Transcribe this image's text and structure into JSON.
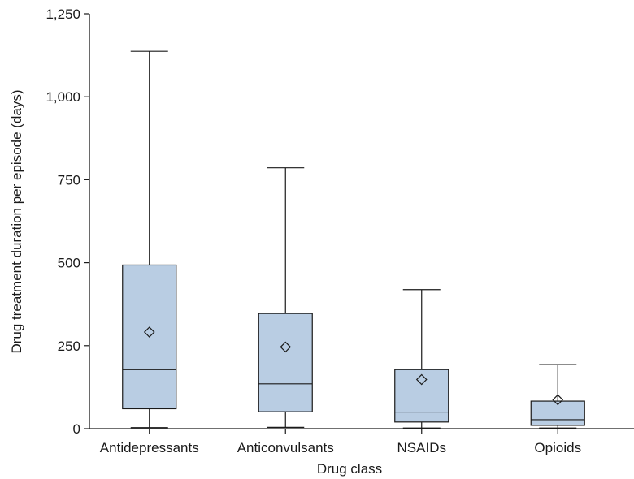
{
  "chart_data": {
    "type": "boxplot",
    "title": "",
    "xlabel": "Drug class",
    "ylabel": "Drug treatment duration per episode (days)",
    "ylim": [
      0,
      1250
    ],
    "yticks": [
      0,
      250,
      500,
      750,
      1000,
      1250
    ],
    "ytick_labels": [
      "0",
      "250",
      "500",
      "750",
      "1,000",
      "1,250"
    ],
    "grid": false,
    "box_color": "#b9cde3",
    "line_color": "#1a1a1a",
    "categories": [
      "Antidepressants",
      "Anticonvulsants",
      "NSAIDs",
      "Opioids"
    ],
    "boxes": [
      {
        "category": "Antidepressants",
        "whisker_low": 3,
        "q1": 60,
        "median": 178,
        "q3": 493,
        "whisker_high": 1137,
        "mean": 291
      },
      {
        "category": "Anticonvulsants",
        "whisker_low": 4,
        "q1": 51,
        "median": 135,
        "q3": 347,
        "whisker_high": 786,
        "mean": 246
      },
      {
        "category": "NSAIDs",
        "whisker_low": 2,
        "q1": 20,
        "median": 50,
        "q3": 178,
        "whisker_high": 419,
        "mean": 148
      },
      {
        "category": "Opioids",
        "whisker_low": 2,
        "q1": 10,
        "median": 27,
        "q3": 83,
        "whisker_high": 193,
        "mean": 87
      }
    ]
  }
}
